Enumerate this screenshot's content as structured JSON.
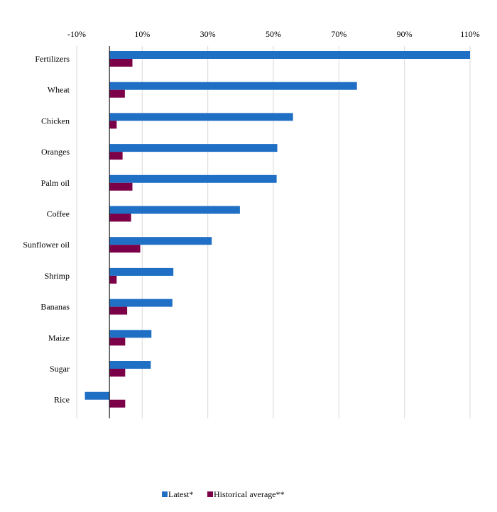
{
  "chart_data": {
    "type": "bar",
    "orientation": "horizontal",
    "title": "",
    "xlabel": "",
    "ylabel": "",
    "xlim": [
      -10,
      110
    ],
    "x_ticks": [
      -10,
      10,
      30,
      50,
      70,
      90,
      110
    ],
    "x_tick_labels": [
      "-10%",
      "10%",
      "30%",
      "50%",
      "70%",
      "90%",
      "110%"
    ],
    "x_axis_position": "top",
    "grid": "vertical",
    "legend_position": "bottom",
    "categories": [
      "Fertilizers",
      "Wheat",
      "Chicken",
      "Oranges",
      "Palm oil",
      "Coffee",
      "Sunflower oil",
      "Shrimp",
      "Bananas",
      "Maize",
      "Sugar",
      "Rice"
    ],
    "series": [
      {
        "name": "Latest*",
        "color": "#1f6fc5",
        "values": [
          110,
          75.5,
          56,
          51.2,
          51,
          39.8,
          31.2,
          19.5,
          19.2,
          12.8,
          12.6,
          -7.5
        ]
      },
      {
        "name": "Historical average**",
        "color": "#7b0047",
        "values": [
          7,
          4.7,
          2.2,
          4,
          7,
          6.6,
          9.4,
          2.2,
          5.4,
          4.8,
          4.8,
          4.8
        ]
      }
    ]
  }
}
